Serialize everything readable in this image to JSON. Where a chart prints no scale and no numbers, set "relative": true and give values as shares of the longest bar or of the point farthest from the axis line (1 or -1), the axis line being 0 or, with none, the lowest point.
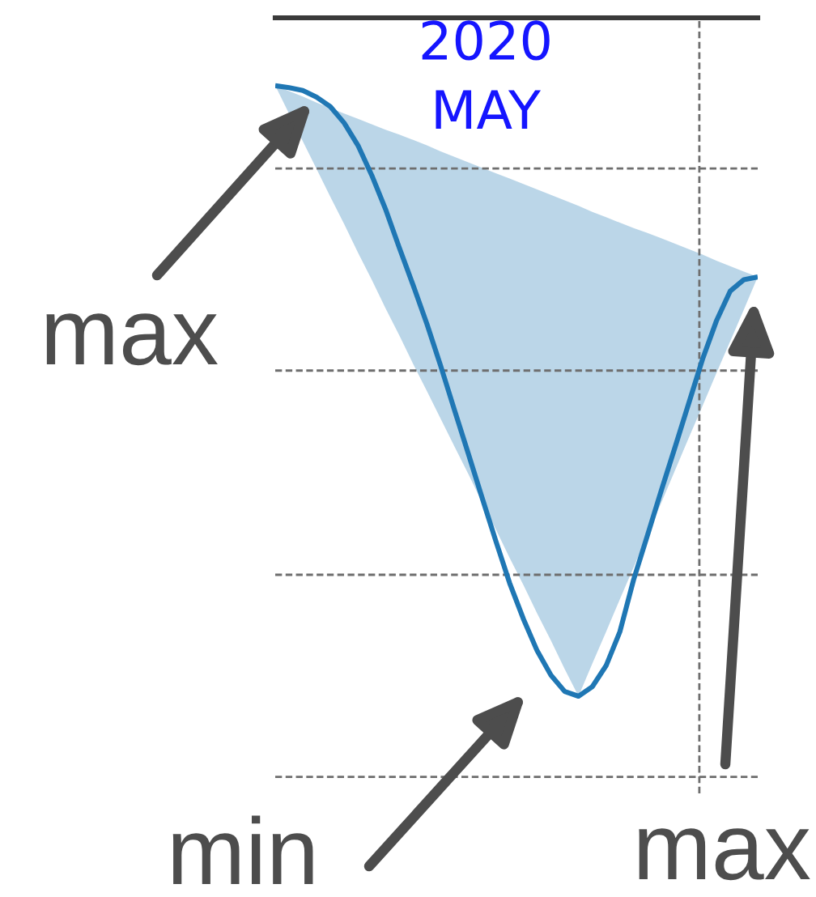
{
  "chart_data": {
    "type": "line",
    "relative": true,
    "grid": true,
    "categories": [
      null,
      null,
      null,
      null,
      null,
      null,
      null,
      null,
      null,
      null,
      null,
      null,
      null,
      null,
      null,
      null,
      null,
      null,
      null,
      null,
      null,
      null,
      null,
      null,
      null,
      null,
      null,
      null,
      null,
      null,
      null,
      null,
      null,
      null,
      null,
      null
    ],
    "series": [
      {
        "color": "#1f77b4",
        "values": [
          -0.1,
          -0.103,
          -0.107,
          -0.117,
          -0.131,
          -0.155,
          -0.188,
          -0.232,
          -0.282,
          -0.339,
          -0.394,
          -0.451,
          -0.513,
          -0.578,
          -0.642,
          -0.707,
          -0.771,
          -0.833,
          -0.886,
          -0.933,
          -0.969,
          -0.993,
          -1.0,
          -0.986,
          -0.955,
          -0.905,
          -0.828,
          -0.763,
          -0.697,
          -0.633,
          -0.568,
          -0.503,
          -0.447,
          -0.403,
          -0.386,
          -0.382
        ],
        "lower": [
          -0.1,
          -0.141,
          -0.182,
          -0.223,
          -0.264,
          -0.304,
          -0.346,
          -0.386,
          -0.428,
          -0.468,
          -0.51,
          -0.55,
          -0.591,
          -0.632,
          -0.672,
          -0.714,
          -0.754,
          -0.796,
          -0.836,
          -0.878,
          -0.918,
          -0.96,
          -1.0,
          -0.952,
          -0.905,
          -0.857,
          -0.81,
          -0.762,
          -0.715,
          -0.667,
          -0.619,
          -0.572,
          -0.524,
          -0.477,
          -0.43,
          -0.382
        ],
        "upper": [
          -0.1,
          -0.108,
          -0.116,
          -0.125,
          -0.133,
          -0.141,
          -0.149,
          -0.157,
          -0.165,
          -0.172,
          -0.18,
          -0.188,
          -0.197,
          -0.205,
          -0.213,
          -0.221,
          -0.229,
          -0.237,
          -0.245,
          -0.253,
          -0.261,
          -0.269,
          -0.277,
          -0.286,
          -0.294,
          -0.302,
          -0.31,
          -0.317,
          -0.325,
          -0.333,
          -0.341,
          -0.349,
          -0.358,
          -0.366,
          -0.374,
          -0.382
        ]
      }
    ],
    "annotations": [
      "2020\nMAY",
      "max",
      "min",
      "max"
    ]
  }
}
